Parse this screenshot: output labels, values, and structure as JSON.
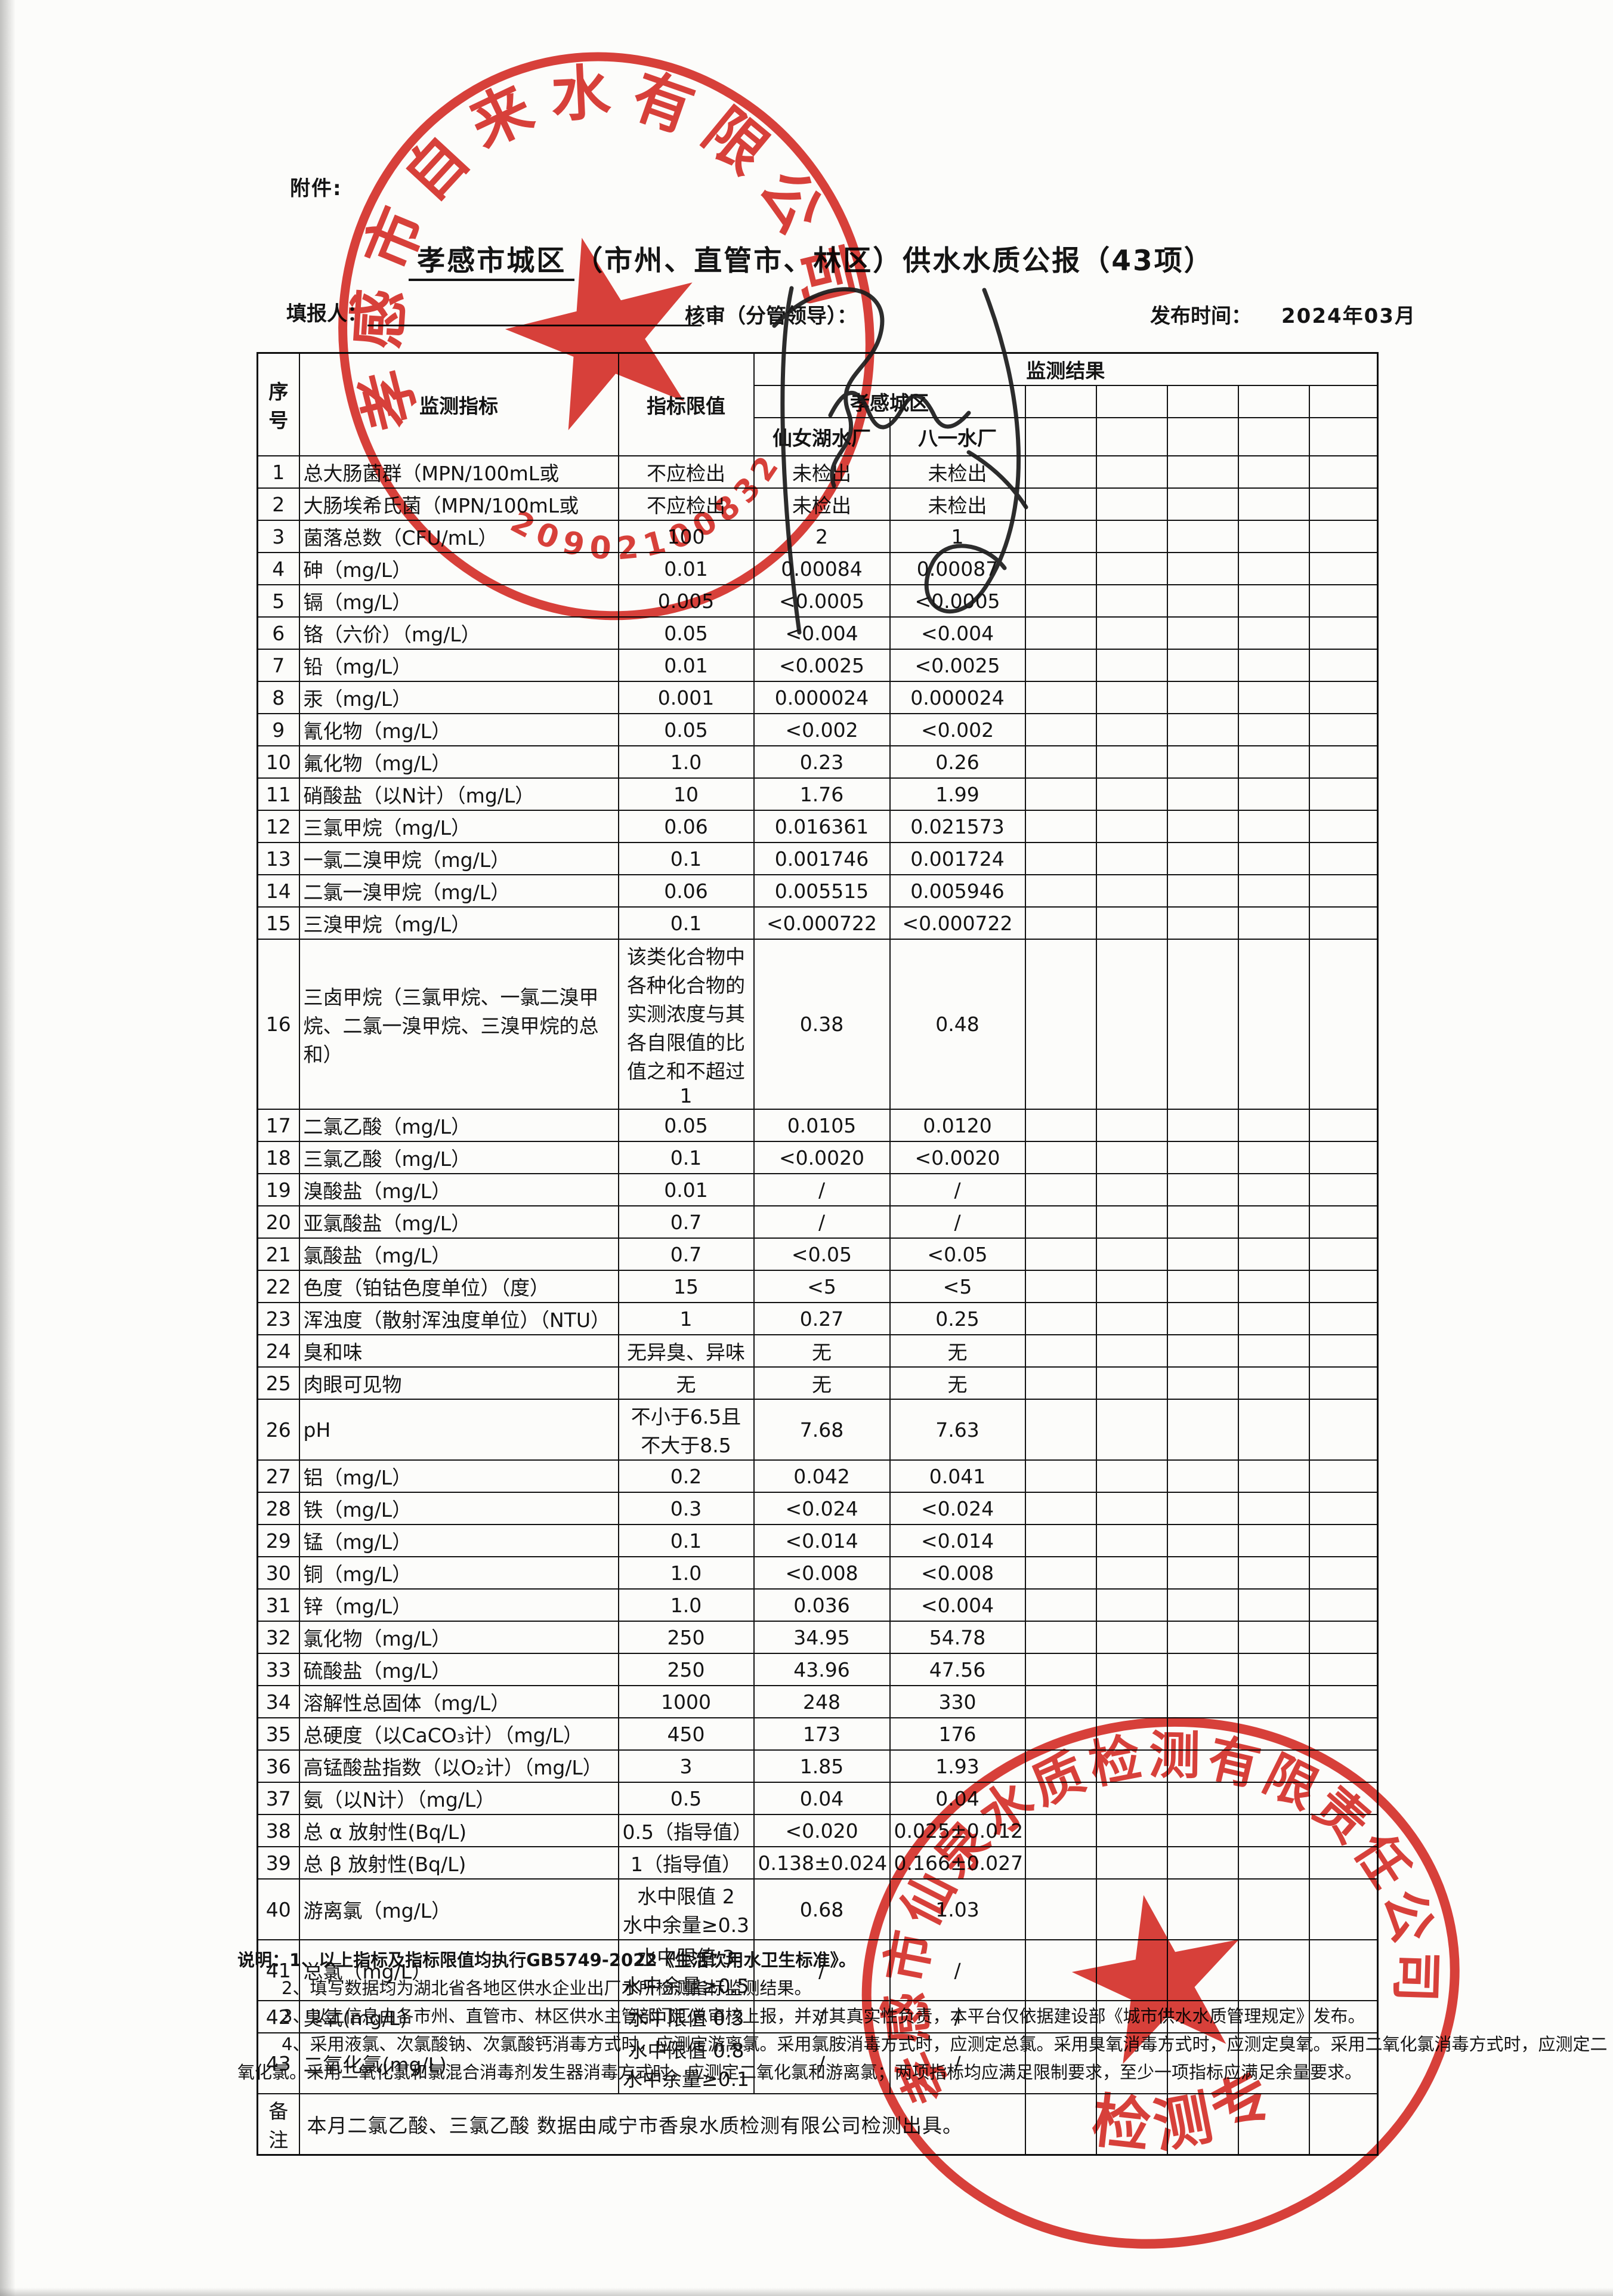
{
  "page": {
    "attachment_label": "附件:",
    "title": {
      "blank": "孝感市城区",
      "rest": "（市州、直管市、林区）供水水质公报（43项）"
    },
    "filler_label": "填报人：",
    "reviewer_label": "核审（分管领导）：",
    "publish_label": "发布时间：",
    "publish_value": "2024年03月"
  },
  "stamps": {
    "top": {
      "company": "孝感市自来水有限公司",
      "number": "4209021008321",
      "color": "#d5261f"
    },
    "bottom": {
      "company": "孝感市仙泉水质检测有限责任公司",
      "caption": "检验检测专用章",
      "color": "#d5261f"
    }
  },
  "table": {
    "headers": {
      "seq": "序号",
      "indicator": "监测指标",
      "limit": "指标限值",
      "result": "监测结果",
      "district": "孝感城区",
      "plant1": "仙女湖水厂",
      "plant2": "八一水厂"
    },
    "empty_cols": 5,
    "rows": [
      {
        "n": "1",
        "ind": "总大肠菌群（MPN/100mL或",
        "lim": "不应检出",
        "a": "未检出",
        "b": "未检出"
      },
      {
        "n": "2",
        "ind": "大肠埃希氏菌（MPN/100mL或",
        "lim": "不应检出",
        "a": "未检出",
        "b": "未检出"
      },
      {
        "n": "3",
        "ind": "菌落总数（CFU/mL）",
        "lim": "100",
        "a": "2",
        "b": "1"
      },
      {
        "n": "4",
        "ind": "砷（mg/L）",
        "lim": "0.01",
        "a": "0.00084",
        "b": "0.00087"
      },
      {
        "n": "5",
        "ind": "镉（mg/L）",
        "lim": "0.005",
        "a": "<0.0005",
        "b": "<0.0005"
      },
      {
        "n": "6",
        "ind": "铬（六价）（mg/L）",
        "lim": "0.05",
        "a": "<0.004",
        "b": "<0.004"
      },
      {
        "n": "7",
        "ind": "铅（mg/L）",
        "lim": "0.01",
        "a": "<0.0025",
        "b": "<0.0025"
      },
      {
        "n": "8",
        "ind": "汞（mg/L）",
        "lim": "0.001",
        "a": "0.000024",
        "b": "0.000024"
      },
      {
        "n": "9",
        "ind": "氰化物（mg/L）",
        "lim": "0.05",
        "a": "<0.002",
        "b": "<0.002"
      },
      {
        "n": "10",
        "ind": "氟化物（mg/L）",
        "lim": "1.0",
        "a": "0.23",
        "b": "0.26"
      },
      {
        "n": "11",
        "ind": "硝酸盐（以N计）（mg/L）",
        "lim": "10",
        "a": "1.76",
        "b": "1.99"
      },
      {
        "n": "12",
        "ind": "三氯甲烷（mg/L）",
        "lim": "0.06",
        "a": "0.016361",
        "b": "0.021573"
      },
      {
        "n": "13",
        "ind": "一氯二溴甲烷（mg/L）",
        "lim": "0.1",
        "a": "0.001746",
        "b": "0.001724"
      },
      {
        "n": "14",
        "ind": "二氯一溴甲烷（mg/L）",
        "lim": "0.06",
        "a": "0.005515",
        "b": "0.005946"
      },
      {
        "n": "15",
        "ind": "三溴甲烷（mg/L）",
        "lim": "0.1",
        "a": "<0.000722",
        "b": "<0.000722"
      },
      {
        "n": "16",
        "ind": "三卤甲烷（三氯甲烷、一氯二溴甲烷、二氯一溴甲烷、三溴甲烷的总和）",
        "lim": "该类化合物中各种化合物的实测浓度与其各自限值的比值之和不超过1",
        "a": "0.38",
        "b": "0.48"
      },
      {
        "n": "17",
        "ind": "二氯乙酸（mg/L）",
        "lim": "0.05",
        "a": "0.0105",
        "b": "0.0120"
      },
      {
        "n": "18",
        "ind": "三氯乙酸（mg/L）",
        "lim": "0.1",
        "a": "<0.0020",
        "b": "<0.0020"
      },
      {
        "n": "19",
        "ind": "溴酸盐（mg/L）",
        "lim": "0.01",
        "a": "/",
        "b": "/"
      },
      {
        "n": "20",
        "ind": "亚氯酸盐（mg/L）",
        "lim": "0.7",
        "a": "/",
        "b": "/"
      },
      {
        "n": "21",
        "ind": "氯酸盐（mg/L）",
        "lim": "0.7",
        "a": "<0.05",
        "b": "<0.05"
      },
      {
        "n": "22",
        "ind": "色度（铂钴色度单位）（度）",
        "lim": "15",
        "a": "<5",
        "b": "<5"
      },
      {
        "n": "23",
        "ind": "浑浊度（散射浑浊度单位）（NTU）",
        "lim": "1",
        "a": "0.27",
        "b": "0.25"
      },
      {
        "n": "24",
        "ind": "臭和味",
        "lim": "无异臭、异味",
        "a": "无",
        "b": "无"
      },
      {
        "n": "25",
        "ind": "肉眼可见物",
        "lim": "无",
        "a": "无",
        "b": "无"
      },
      {
        "n": "26",
        "ind": "pH",
        "lim": "不小于6.5且不大于8.5",
        "a": "7.68",
        "b": "7.63"
      },
      {
        "n": "27",
        "ind": "铝（mg/L）",
        "lim": "0.2",
        "a": "0.042",
        "b": "0.041"
      },
      {
        "n": "28",
        "ind": "铁（mg/L）",
        "lim": "0.3",
        "a": "<0.024",
        "b": "<0.024"
      },
      {
        "n": "29",
        "ind": "锰（mg/L）",
        "lim": "0.1",
        "a": "<0.014",
        "b": "<0.014"
      },
      {
        "n": "30",
        "ind": "铜（mg/L）",
        "lim": "1.0",
        "a": "<0.008",
        "b": "<0.008"
      },
      {
        "n": "31",
        "ind": "锌（mg/L）",
        "lim": "1.0",
        "a": "0.036",
        "b": "<0.004"
      },
      {
        "n": "32",
        "ind": "氯化物（mg/L）",
        "lim": "250",
        "a": "34.95",
        "b": "54.78"
      },
      {
        "n": "33",
        "ind": "硫酸盐（mg/L）",
        "lim": "250",
        "a": "43.96",
        "b": "47.56"
      },
      {
        "n": "34",
        "ind": "溶解性总固体（mg/L）",
        "lim": "1000",
        "a": "248",
        "b": "330"
      },
      {
        "n": "35",
        "ind": "总硬度（以CaCO₃计）（mg/L）",
        "lim": "450",
        "a": "173",
        "b": "176"
      },
      {
        "n": "36",
        "ind": "高锰酸盐指数（以O₂计）（mg/L）",
        "lim": "3",
        "a": "1.85",
        "b": "1.93"
      },
      {
        "n": "37",
        "ind": "氨（以N计）（mg/L）",
        "lim": "0.5",
        "a": "0.04",
        "b": "0.04"
      },
      {
        "n": "38",
        "ind": "总 α 放射性(Bq/L)",
        "lim": "0.5（指导值）",
        "a": "<0.020",
        "b": "0.025±0.012"
      },
      {
        "n": "39",
        "ind": "总 β 放射性(Bq/L)",
        "lim": "1（指导值）",
        "a": "0.138±0.024",
        "b": "0.166±0.027"
      },
      {
        "n": "40",
        "ind": "游离氯（mg/L）",
        "lim": "水中限值 2\n水中余量≥0.3",
        "a": "0.68",
        "b": "1.03"
      },
      {
        "n": "41",
        "ind": "总氯（mg/L）",
        "lim": "水中限值 3\n水中余量≥0.5",
        "a": "/",
        "b": "/"
      },
      {
        "n": "42",
        "ind": "臭氧(mg/L)",
        "lim": "水中限值 0.3",
        "a": "/",
        "b": "/"
      },
      {
        "n": "43",
        "ind": "二氧化氯(mg/L)",
        "lim": "水中限值 0.8\n水中余量≥0.1",
        "a": "/",
        "b": "/"
      }
    ],
    "remark": {
      "label": "备注",
      "text": "本月二氯乙酸、三氯乙酸 数据由咸宁市香泉水质检测有限公司检测出具。"
    }
  },
  "notes": {
    "line1": "说明：1、以上指标及指标限值均执行GB5749-2022《生活饮用水卫生标准》。",
    "line2": "2、填写数据均为湖北省各地区供水企业出厂水所检测指标监测结果。",
    "line3": "3、以上信息由各市州、直管市、林区供水主管部门汇总审核上报，并对其真实性负责，本平台仅依据建设部《城市供水水质管理规定》发布。",
    "line4": "4、采用液氯、次氯酸钠、次氯酸钙消毒方式时，应测定游离氯。采用氯胺消毒方式时，应测定总氯。采用臭氧消毒方式时，应测定臭氧。采用二氧化氯消毒方式时，应测定二",
    "line5": "氧化氯。采用二氧化氯和氯混合消毒剂发生器消毒方式时，应测定二氧化氯和游离氯；两项指标均应满足限制要求，至少一项指标应满足余量要求。"
  }
}
